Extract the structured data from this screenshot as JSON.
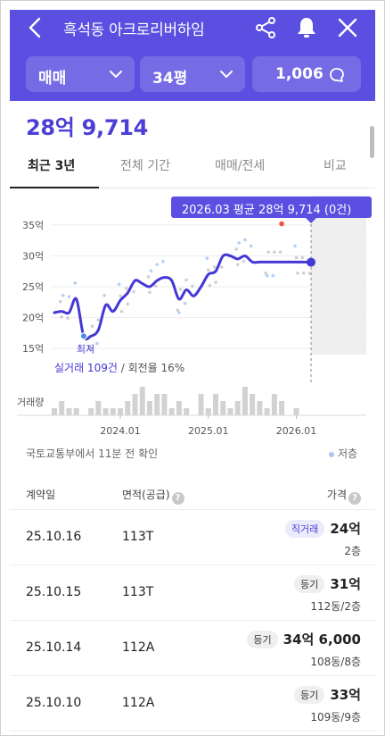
{
  "header": {
    "title": "흑석동 아크로리버하임",
    "trade_type": "매매",
    "size": "34평",
    "comment_count": "1,006",
    "colors": {
      "brand": "#5a4fe0"
    }
  },
  "summary": {
    "price": "28억 9,714"
  },
  "tabs": [
    {
      "label": "최근 3년",
      "active": true
    },
    {
      "label": "전체 기간",
      "active": false
    },
    {
      "label": "매매/전세",
      "active": false
    },
    {
      "label": "비교",
      "active": false
    }
  ],
  "chart": {
    "tooltip": "2026.03 평균 28억 9,714 (0건)",
    "min_label": "최저",
    "stats_count": "실거래 109건",
    "stats_turnover": " / 회전율 16%",
    "volume_label": "거래량",
    "source_note": "국토교통부에서 11분 전 확인",
    "legend_low": "저층"
  },
  "chart_data": {
    "type": "line",
    "y_tick_labels": [
      "35억",
      "30억",
      "25억",
      "20억",
      "15억"
    ],
    "y_ticks": [
      35,
      30,
      25,
      20,
      15
    ],
    "ylim": [
      14,
      36
    ],
    "x_tick_labels": [
      "2024.01",
      "2025.01",
      "2026.01"
    ],
    "series": [
      {
        "x": [
          "2023.04",
          "2023.05",
          "2023.06",
          "2023.07",
          "2023.08",
          "2023.09",
          "2023.10",
          "2023.11",
          "2023.12",
          "2024.01",
          "2024.02",
          "2024.03",
          "2024.04",
          "2024.05",
          "2024.06",
          "2024.07",
          "2024.08",
          "2024.09",
          "2024.10",
          "2024.11",
          "2024.12",
          "2025.01",
          "2025.02",
          "2025.03",
          "2025.04",
          "2025.05",
          "2025.06",
          "2025.07",
          "2025.08",
          "2025.09",
          "2025.10",
          "2025.11",
          "2025.12",
          "2026.01",
          "2026.02",
          "2026.03"
        ],
        "values": [
          20.8,
          21.0,
          20.8,
          23.0,
          17.0,
          17.0,
          18.0,
          22.0,
          21.0,
          22.8,
          24.0,
          26.0,
          25.5,
          25.0,
          26.0,
          26.5,
          26.0,
          23.0,
          24.5,
          23.5,
          25.0,
          27.0,
          27.5,
          30.0,
          30.0,
          29.5,
          30.0,
          29.0,
          29.0,
          29.0,
          29.0,
          29.0,
          29.0,
          29.0,
          29.0,
          28.97
        ]
      }
    ],
    "volume": [
      1,
      2,
      1,
      1,
      0,
      1,
      2,
      1,
      1,
      1,
      2,
      3,
      4,
      2,
      3,
      3,
      1,
      2,
      1,
      0,
      3,
      1,
      3,
      2,
      1,
      2,
      4,
      3,
      2,
      1,
      3,
      2,
      0,
      1,
      0,
      0
    ]
  },
  "table": {
    "headers": {
      "date": "계약일",
      "area": "면적(공급)",
      "price": "가격"
    },
    "rows": [
      {
        "date": "25.10.16",
        "area": "113T",
        "badge": "직거래",
        "badge_type": "direct",
        "amount": "24억",
        "floor": "2층"
      },
      {
        "date": "25.10.15",
        "area": "113T",
        "badge": "등기",
        "badge_type": "registry",
        "amount": "31억",
        "floor": "112동/2층"
      },
      {
        "date": "25.10.14",
        "area": "112A",
        "badge": "등기",
        "badge_type": "registry",
        "amount": "34억 6,000",
        "floor": "108동/8층"
      },
      {
        "date": "25.10.10",
        "area": "112A",
        "badge": "등기",
        "badge_type": "registry",
        "amount": "33억",
        "floor": "109동/9층"
      }
    ]
  }
}
